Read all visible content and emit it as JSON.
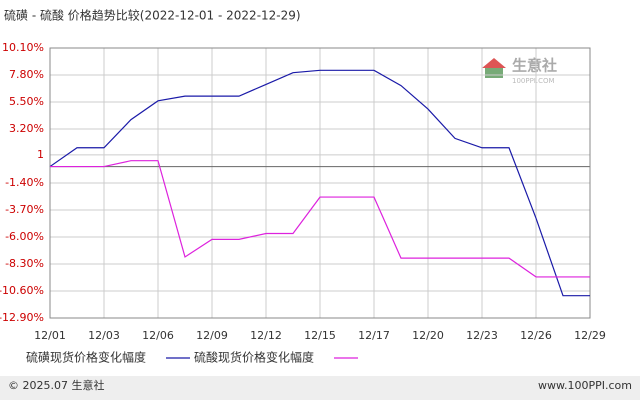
{
  "chart_data": {
    "type": "line",
    "title": "硫磺 - 硫酸 价格趋势比较(2022-12-01 - 2022-12-29)",
    "categories": [
      "12/01",
      null,
      "12/03",
      null,
      "12/06",
      null,
      "12/09",
      null,
      "12/12",
      null,
      "12/15",
      null,
      "12/17",
      null,
      "12/20",
      null,
      "12/23",
      null,
      "12/26",
      null,
      "12/29"
    ],
    "series": [
      {
        "name": "硫磺现货价格变化幅度",
        "color": "#1a1aa8",
        "values": [
          0,
          1.6,
          1.6,
          4.0,
          5.6,
          6.0,
          6.0,
          6.0,
          7.0,
          8.0,
          8.2,
          8.2,
          8.2,
          6.9,
          4.9,
          2.4,
          1.6,
          1.6,
          -4.4,
          -11.0,
          -11.0
        ]
      },
      {
        "name": "硫酸现货价格变化幅度",
        "color": "#dd22dd",
        "values": [
          0,
          0,
          0,
          0.5,
          0.5,
          -7.7,
          -6.2,
          -6.2,
          -5.7,
          -5.7,
          -2.6,
          -2.6,
          -2.6,
          -7.8,
          -7.8,
          -7.8,
          -7.8,
          -7.8,
          -9.4,
          -9.4,
          -9.4
        ]
      }
    ],
    "ylim": [
      -12.9,
      10.1
    ],
    "yticks": [
      {
        "value": 10.1,
        "label": "10.10%"
      },
      {
        "value": 7.8,
        "label": "7.80%"
      },
      {
        "value": 5.5,
        "label": "5.50%"
      },
      {
        "value": 3.2,
        "label": "3.20%"
      },
      1,
      {
        "value": -1.4,
        "label": "-1.40%"
      },
      {
        "value": -3.7,
        "label": "-3.70%"
      },
      {
        "value": -6.0,
        "label": "-6.00%"
      },
      {
        "value": -8.3,
        "label": "-8.30%"
      },
      {
        "value": -10.6,
        "label": "-10.60%"
      },
      {
        "value": -12.9,
        "label": "-12.90%"
      }
    ],
    "grid": true,
    "watermark": {
      "name": "生意社",
      "site": "100PPI.COM"
    },
    "footer": {
      "left": "© 2025.07 生意社",
      "right": "www.100PPI.com"
    }
  }
}
